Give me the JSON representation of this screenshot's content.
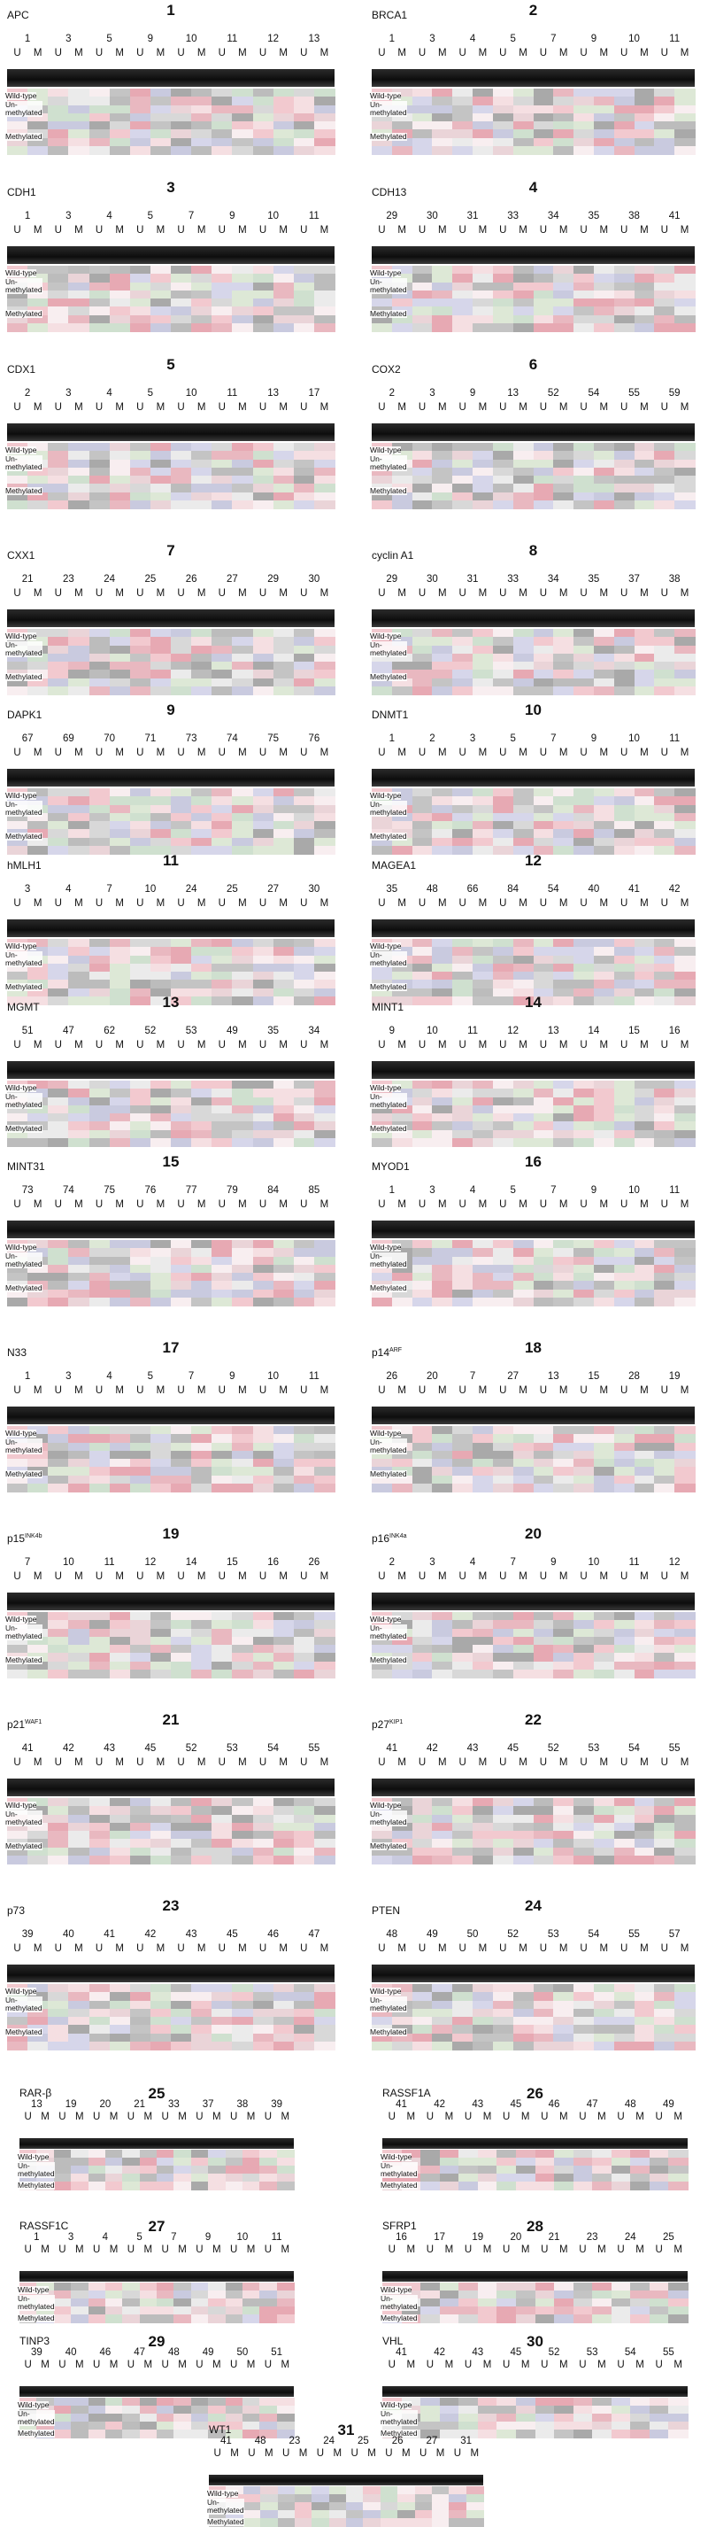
{
  "row_labels": {
    "wild_type": "Wild-type",
    "unmethylated": "Un-\nmethylated",
    "methylated": "Methylated"
  },
  "lane_letters": [
    "U",
    "M"
  ],
  "panels": [
    {
      "id": "1",
      "gene": "APC",
      "sup": "",
      "samples": [
        "1",
        "3",
        "5",
        "9",
        "10",
        "11",
        "12",
        "13"
      ]
    },
    {
      "id": "2",
      "gene": "BRCA1",
      "sup": "",
      "samples": [
        "1",
        "3",
        "4",
        "5",
        "7",
        "9",
        "10",
        "11"
      ]
    },
    {
      "id": "3",
      "gene": "CDH1",
      "sup": "",
      "samples": [
        "1",
        "3",
        "4",
        "5",
        "7",
        "9",
        "10",
        "11"
      ]
    },
    {
      "id": "4",
      "gene": "CDH13",
      "sup": "",
      "samples": [
        "29",
        "30",
        "31",
        "33",
        "34",
        "35",
        "38",
        "41"
      ]
    },
    {
      "id": "5",
      "gene": "CDX1",
      "sup": "",
      "samples": [
        "2",
        "3",
        "4",
        "5",
        "10",
        "11",
        "13",
        "17"
      ]
    },
    {
      "id": "6",
      "gene": "COX2",
      "sup": "",
      "samples": [
        "2",
        "3",
        "9",
        "13",
        "52",
        "54",
        "55",
        "59"
      ]
    },
    {
      "id": "7",
      "gene": "CXX1",
      "sup": "",
      "samples": [
        "21",
        "23",
        "24",
        "25",
        "26",
        "27",
        "29",
        "30"
      ]
    },
    {
      "id": "8",
      "gene": "cyclin A1",
      "sup": "",
      "samples": [
        "29",
        "30",
        "31",
        "33",
        "34",
        "35",
        "37",
        "38"
      ]
    },
    {
      "id": "9",
      "gene": "DAPK1",
      "sup": "",
      "samples": [
        "67",
        "69",
        "70",
        "71",
        "73",
        "74",
        "75",
        "76"
      ]
    },
    {
      "id": "10",
      "gene": "DNMT1",
      "sup": "",
      "samples": [
        "1",
        "2",
        "3",
        "5",
        "7",
        "9",
        "10",
        "11"
      ]
    },
    {
      "id": "11",
      "gene": "hMLH1",
      "sup": "",
      "samples": [
        "3",
        "4",
        "7",
        "10",
        "24",
        "25",
        "27",
        "30"
      ]
    },
    {
      "id": "12",
      "gene": "MAGEA1",
      "sup": "",
      "samples": [
        "35",
        "48",
        "66",
        "84",
        "54",
        "40",
        "41",
        "42"
      ]
    },
    {
      "id": "13",
      "gene": "MGMT",
      "sup": "",
      "samples": [
        "51",
        "47",
        "62",
        "52",
        "53",
        "49",
        "35",
        "34"
      ]
    },
    {
      "id": "14",
      "gene": "MINT1",
      "sup": "",
      "samples": [
        "9",
        "10",
        "11",
        "12",
        "13",
        "14",
        "15",
        "16"
      ]
    },
    {
      "id": "15",
      "gene": "MINT31",
      "sup": "",
      "samples": [
        "73",
        "74",
        "75",
        "76",
        "77",
        "79",
        "84",
        "85"
      ]
    },
    {
      "id": "16",
      "gene": "MYOD1",
      "sup": "",
      "samples": [
        "1",
        "3",
        "4",
        "5",
        "7",
        "9",
        "10",
        "11"
      ]
    },
    {
      "id": "17",
      "gene": "N33",
      "sup": "",
      "samples": [
        "1",
        "3",
        "4",
        "5",
        "7",
        "9",
        "10",
        "11"
      ]
    },
    {
      "id": "18",
      "gene": "p14",
      "sup": "ARF",
      "samples": [
        "26",
        "20",
        "7",
        "27",
        "13",
        "15",
        "28",
        "19"
      ]
    },
    {
      "id": "19",
      "gene": "p15",
      "sup": "INK4b",
      "samples": [
        "7",
        "10",
        "11",
        "12",
        "14",
        "15",
        "16",
        "26"
      ]
    },
    {
      "id": "20",
      "gene": "p16",
      "sup": "INK4a",
      "samples": [
        "2",
        "3",
        "4",
        "7",
        "9",
        "10",
        "11",
        "12"
      ]
    },
    {
      "id": "21",
      "gene": "p21",
      "sup": "WAF1",
      "samples": [
        "41",
        "42",
        "43",
        "45",
        "52",
        "53",
        "54",
        "55"
      ]
    },
    {
      "id": "22",
      "gene": "p27",
      "sup": "KIP1",
      "samples": [
        "41",
        "42",
        "43",
        "45",
        "52",
        "53",
        "54",
        "55"
      ]
    },
    {
      "id": "23",
      "gene": "p73",
      "sup": "",
      "samples": [
        "39",
        "40",
        "41",
        "42",
        "43",
        "45",
        "46",
        "47"
      ]
    },
    {
      "id": "24",
      "gene": "PTEN",
      "sup": "",
      "samples": [
        "48",
        "49",
        "50",
        "52",
        "53",
        "54",
        "55",
        "57"
      ]
    },
    {
      "id": "25",
      "gene": "RAR-β",
      "sup": "",
      "samples": [
        "13",
        "19",
        "20",
        "21",
        "33",
        "37",
        "38",
        "39"
      ]
    },
    {
      "id": "26",
      "gene": "RASSF1A",
      "sup": "",
      "samples": [
        "41",
        "42",
        "43",
        "45",
        "46",
        "47",
        "48",
        "49"
      ]
    },
    {
      "id": "27",
      "gene": "RASSF1C",
      "sup": "",
      "samples": [
        "1",
        "3",
        "4",
        "5",
        "7",
        "9",
        "10",
        "11"
      ]
    },
    {
      "id": "28",
      "gene": "SFRP1",
      "sup": "",
      "samples": [
        "16",
        "17",
        "19",
        "20",
        "21",
        "23",
        "24",
        "25"
      ]
    },
    {
      "id": "29",
      "gene": "TINP3",
      "sup": "",
      "samples": [
        "39",
        "40",
        "46",
        "47",
        "48",
        "49",
        "50",
        "51"
      ]
    },
    {
      "id": "30",
      "gene": "VHL",
      "sup": "",
      "samples": [
        "41",
        "42",
        "43",
        "45",
        "52",
        "53",
        "54",
        "55"
      ]
    },
    {
      "id": "31",
      "gene": "WT1",
      "sup": "",
      "samples": [
        "41",
        "48",
        "23",
        "24",
        "25",
        "26",
        "27",
        "31"
      ]
    }
  ]
}
